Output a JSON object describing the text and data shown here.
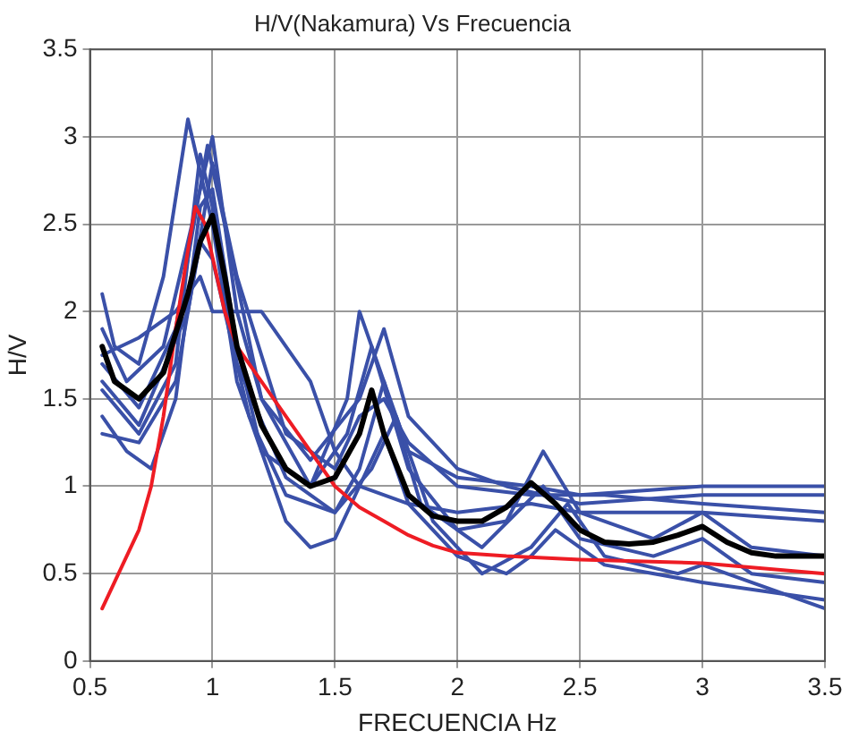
{
  "chart_data": {
    "type": "line",
    "title": "H/V(Nakamura) Vs Frecuencia",
    "xlabel": "FRECUENCIA Hz",
    "ylabel": "H/V",
    "xlim": [
      0.5,
      3.5
    ],
    "xticks": [
      0.5,
      1,
      1.5,
      2,
      2.5,
      3,
      3.5
    ],
    "ylim": [
      0,
      3.5
    ],
    "yticks": [
      0,
      0.5,
      1,
      1.5,
      2,
      2.5,
      3,
      3.5
    ],
    "grid": true,
    "legend": false,
    "marker": "none",
    "line_style": "solid",
    "series": [
      {
        "color": "#3a50a8",
        "x": [
          0.55,
          0.6,
          0.7,
          0.8,
          0.9,
          0.95,
          1.0,
          1.1,
          1.2,
          1.4,
          1.55,
          1.6,
          1.7,
          1.8,
          2.0,
          2.3,
          2.5,
          2.8,
          3.0,
          3.5
        ],
        "values": [
          2.1,
          1.8,
          1.7,
          2.2,
          3.1,
          2.8,
          2.5,
          1.6,
          1.2,
          1.0,
          1.5,
          2.0,
          1.6,
          1.2,
          1.05,
          1.0,
          0.95,
          0.98,
          1.0,
          1.0
        ]
      },
      {
        "color": "#3a50a8",
        "x": [
          0.55,
          0.65,
          0.8,
          0.9,
          1.0,
          1.1,
          1.2,
          1.4,
          1.6,
          1.7,
          1.8,
          2.0,
          2.2,
          2.5,
          3.0,
          3.5
        ],
        "values": [
          1.9,
          1.6,
          1.8,
          2.4,
          3.0,
          2.0,
          1.5,
          1.15,
          1.5,
          1.9,
          1.4,
          1.1,
          1.0,
          0.9,
          0.95,
          0.95
        ]
      },
      {
        "color": "#3a50a8",
        "x": [
          0.55,
          0.7,
          0.85,
          0.95,
          1.0,
          1.2,
          1.4,
          1.5,
          1.6,
          1.8,
          2.0,
          2.3,
          2.5,
          3.0,
          3.5
        ],
        "values": [
          1.75,
          1.85,
          2.0,
          2.2,
          2.0,
          2.0,
          1.6,
          1.2,
          1.0,
          0.9,
          0.85,
          0.9,
          0.85,
          0.85,
          0.8
        ]
      },
      {
        "color": "#3a50a8",
        "x": [
          0.55,
          0.65,
          0.75,
          0.85,
          0.95,
          1.0,
          1.1,
          1.2,
          1.3,
          1.4,
          1.5,
          1.6,
          1.7,
          1.8,
          2.0,
          2.2,
          2.3,
          2.4,
          2.6,
          3.0,
          3.5
        ],
        "values": [
          1.4,
          1.2,
          1.1,
          1.5,
          2.6,
          2.7,
          1.8,
          1.2,
          0.8,
          0.65,
          0.7,
          1.0,
          1.3,
          0.9,
          0.6,
          0.5,
          0.6,
          0.75,
          0.55,
          0.45,
          0.35
        ]
      },
      {
        "color": "#3a50a8",
        "x": [
          0.55,
          0.7,
          0.85,
          0.95,
          1.0,
          1.1,
          1.3,
          1.5,
          1.6,
          1.7,
          1.85,
          2.1,
          2.35,
          2.5,
          2.8,
          3.0,
          3.2,
          3.5
        ],
        "values": [
          1.55,
          1.3,
          1.7,
          2.9,
          2.6,
          1.7,
          1.05,
          0.85,
          1.1,
          1.6,
          0.9,
          0.65,
          1.0,
          0.7,
          0.6,
          0.7,
          0.5,
          0.45
        ]
      },
      {
        "color": "#3a50a8",
        "x": [
          0.55,
          0.7,
          0.85,
          0.98,
          1.05,
          1.2,
          1.4,
          1.55,
          1.65,
          1.8,
          2.0,
          2.2,
          2.35,
          2.5,
          2.8,
          3.0,
          3.2,
          3.5
        ],
        "values": [
          1.7,
          1.45,
          1.9,
          2.95,
          2.5,
          1.5,
          1.0,
          1.3,
          1.8,
          1.1,
          0.75,
          0.8,
          1.2,
          0.85,
          0.7,
          0.85,
          0.65,
          0.6
        ]
      },
      {
        "color": "#3a50a8",
        "x": [
          0.55,
          0.7,
          0.85,
          0.95,
          1.0,
          1.15,
          1.3,
          1.5,
          1.65,
          1.75,
          1.9,
          2.1,
          2.3,
          2.45,
          2.6,
          2.9,
          3.0,
          3.5
        ],
        "values": [
          1.3,
          1.25,
          1.6,
          2.4,
          2.3,
          1.4,
          0.95,
          0.85,
          1.1,
          1.4,
          0.8,
          0.5,
          0.65,
          0.9,
          0.6,
          0.5,
          0.55,
          0.3
        ]
      },
      {
        "color": "#3a50a8",
        "x": [
          0.55,
          0.7,
          0.9,
          1.0,
          1.1,
          1.3,
          1.5,
          1.6,
          1.7,
          1.8,
          2.0,
          2.3,
          2.6,
          3.0,
          3.5
        ],
        "values": [
          1.6,
          1.35,
          2.0,
          2.85,
          2.2,
          1.3,
          1.1,
          1.4,
          1.5,
          1.25,
          1.0,
          0.95,
          0.95,
          0.9,
          0.85
        ]
      },
      {
        "color": "#ee1c24",
        "x": [
          0.55,
          0.6,
          0.7,
          0.75,
          0.8,
          0.85,
          0.9,
          0.93,
          0.97,
          1.05,
          1.1,
          1.2,
          1.3,
          1.4,
          1.5,
          1.6,
          1.7,
          1.8,
          1.9,
          2.0,
          2.2,
          2.5,
          3.0,
          3.5
        ],
        "values": [
          0.3,
          0.45,
          0.75,
          1.0,
          1.4,
          1.9,
          2.35,
          2.6,
          2.5,
          2.0,
          1.8,
          1.6,
          1.4,
          1.2,
          1.0,
          0.88,
          0.8,
          0.72,
          0.66,
          0.62,
          0.6,
          0.58,
          0.56,
          0.5
        ]
      },
      {
        "color": "#000000",
        "x": [
          0.55,
          0.6,
          0.7,
          0.8,
          0.9,
          0.95,
          1.0,
          1.05,
          1.1,
          1.2,
          1.3,
          1.4,
          1.5,
          1.6,
          1.65,
          1.7,
          1.8,
          1.9,
          2.0,
          2.1,
          2.2,
          2.3,
          2.4,
          2.5,
          2.6,
          2.7,
          2.8,
          2.9,
          3.0,
          3.1,
          3.2,
          3.3,
          3.4,
          3.5
        ],
        "values": [
          1.8,
          1.6,
          1.5,
          1.65,
          2.1,
          2.4,
          2.55,
          2.2,
          1.8,
          1.35,
          1.1,
          1.0,
          1.05,
          1.3,
          1.55,
          1.3,
          0.95,
          0.83,
          0.8,
          0.8,
          0.88,
          1.02,
          0.9,
          0.75,
          0.68,
          0.67,
          0.68,
          0.72,
          0.77,
          0.68,
          0.62,
          0.6,
          0.6,
          0.6
        ]
      }
    ]
  }
}
